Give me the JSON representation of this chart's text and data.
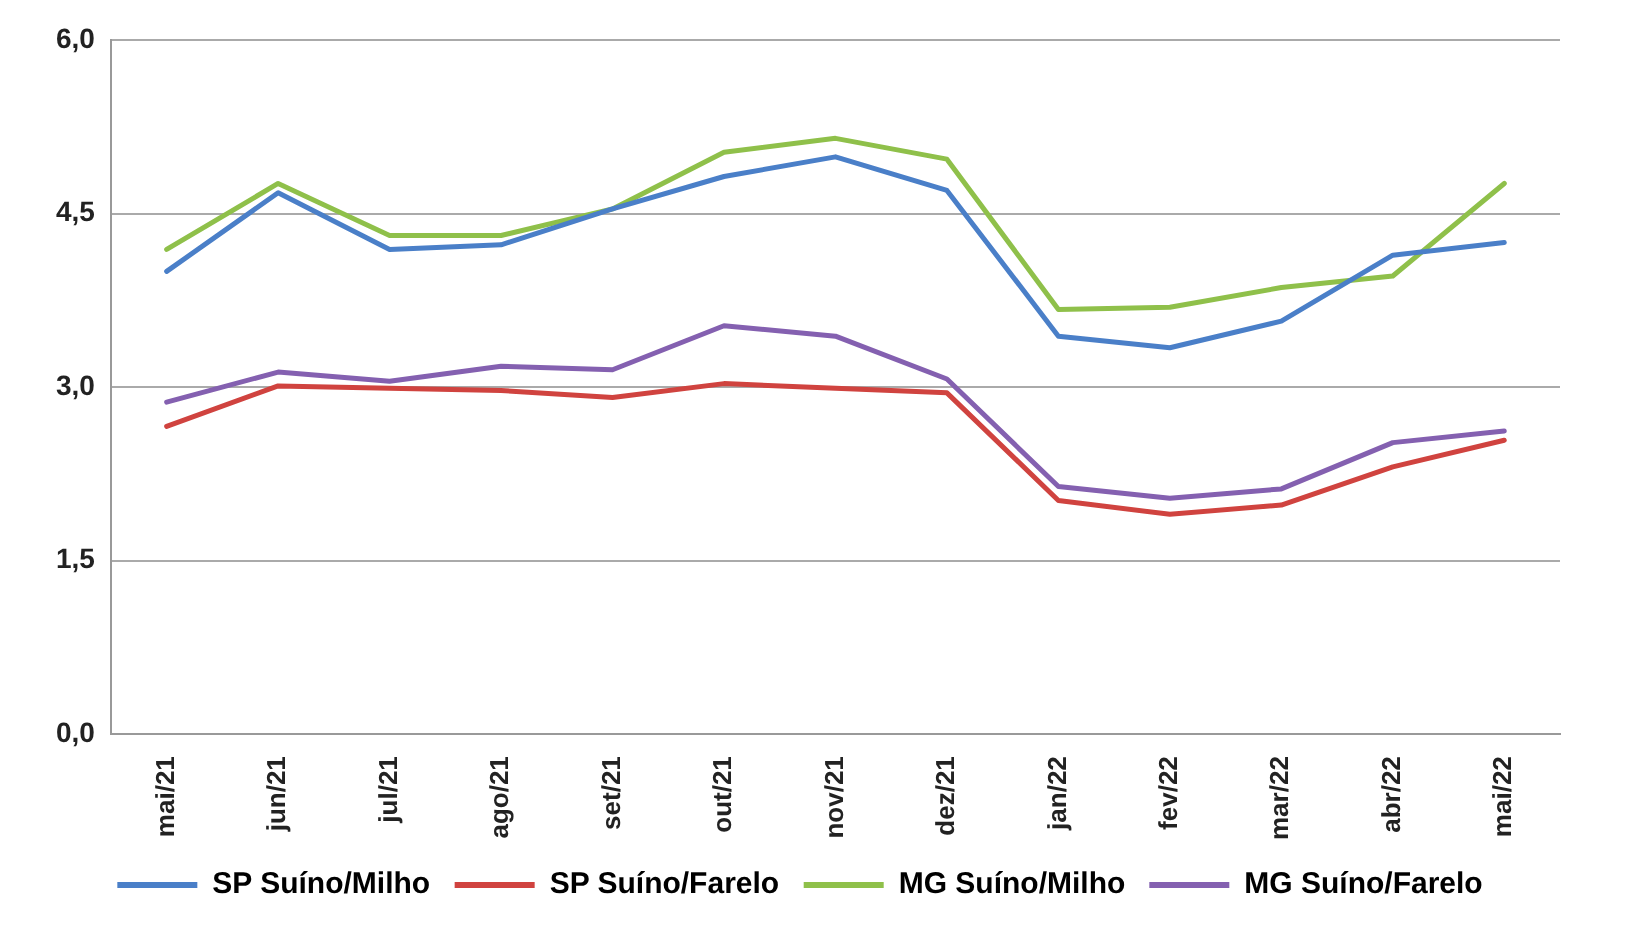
{
  "chart_data": {
    "type": "line",
    "categories": [
      "mai/21",
      "jun/21",
      "jul/21",
      "ago/21",
      "set/21",
      "out/21",
      "nov/21",
      "dez/21",
      "jan/22",
      "fev/22",
      "mar/22",
      "abr/22",
      "mai/22"
    ],
    "series": [
      {
        "name": "SP Suíno/Milho",
        "color": "#4a7fc8",
        "values": [
          4.0,
          4.68,
          4.19,
          4.23,
          4.54,
          4.82,
          4.99,
          4.7,
          3.44,
          3.34,
          3.57,
          4.14,
          4.25
        ]
      },
      {
        "name": "SP Suíno/Farelo",
        "color": "#d0433f",
        "values": [
          2.66,
          3.01,
          2.99,
          2.97,
          2.91,
          3.03,
          2.99,
          2.95,
          2.02,
          1.9,
          1.98,
          2.31,
          2.54
        ]
      },
      {
        "name": "MG Suíno/Milho",
        "color": "#8fc04a",
        "values": [
          4.19,
          4.76,
          4.31,
          4.31,
          4.54,
          5.03,
          5.15,
          4.97,
          3.67,
          3.69,
          3.86,
          3.96,
          4.76
        ]
      },
      {
        "name": "MG Suíno/Farelo",
        "color": "#8460b0",
        "values": [
          2.87,
          3.13,
          3.05,
          3.18,
          3.15,
          3.53,
          3.44,
          3.07,
          2.14,
          2.04,
          2.12,
          2.52,
          2.62
        ]
      }
    ],
    "ylim": [
      0,
      6
    ],
    "yticks": [
      {
        "value": 0,
        "label": "0,0"
      },
      {
        "value": 1.5,
        "label": "1,5"
      },
      {
        "value": 3,
        "label": "3,0"
      },
      {
        "value": 4.5,
        "label": "4,5"
      },
      {
        "value": 6,
        "label": "6,0"
      }
    ],
    "grid": "y",
    "legend": "bottom",
    "marker": "none",
    "line_style": "solid"
  }
}
